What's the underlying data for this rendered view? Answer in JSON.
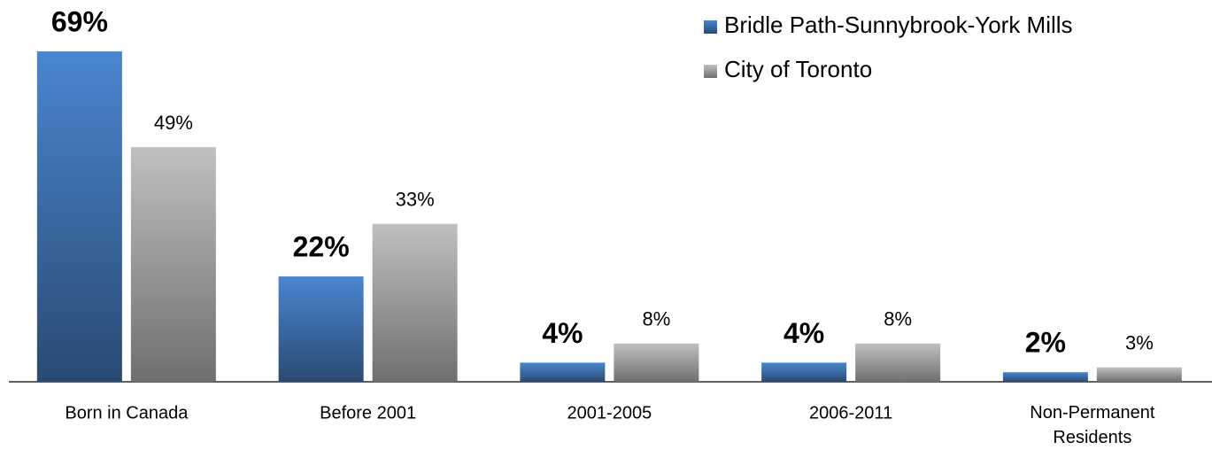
{
  "chart_data": {
    "type": "bar",
    "categories": [
      "Born in Canada",
      "Before 2001",
      "2001-2005",
      "2006-2011",
      "Non-Permanent Residents"
    ],
    "series": [
      {
        "name": "Bridle Path-Sunnybrook-York Mills",
        "color": "#4a86cf",
        "values": [
          69,
          22,
          4,
          4,
          2
        ],
        "value_labels": [
          "69%",
          "22%",
          "4%",
          "4%",
          "2%"
        ]
      },
      {
        "name": "City of Toronto",
        "color": "#c0c0c0",
        "values": [
          49,
          33,
          8,
          8,
          3
        ],
        "value_labels": [
          "49%",
          "33%",
          "8%",
          "8%",
          "3%"
        ]
      }
    ],
    "legend": "top-right",
    "grid": false
  }
}
